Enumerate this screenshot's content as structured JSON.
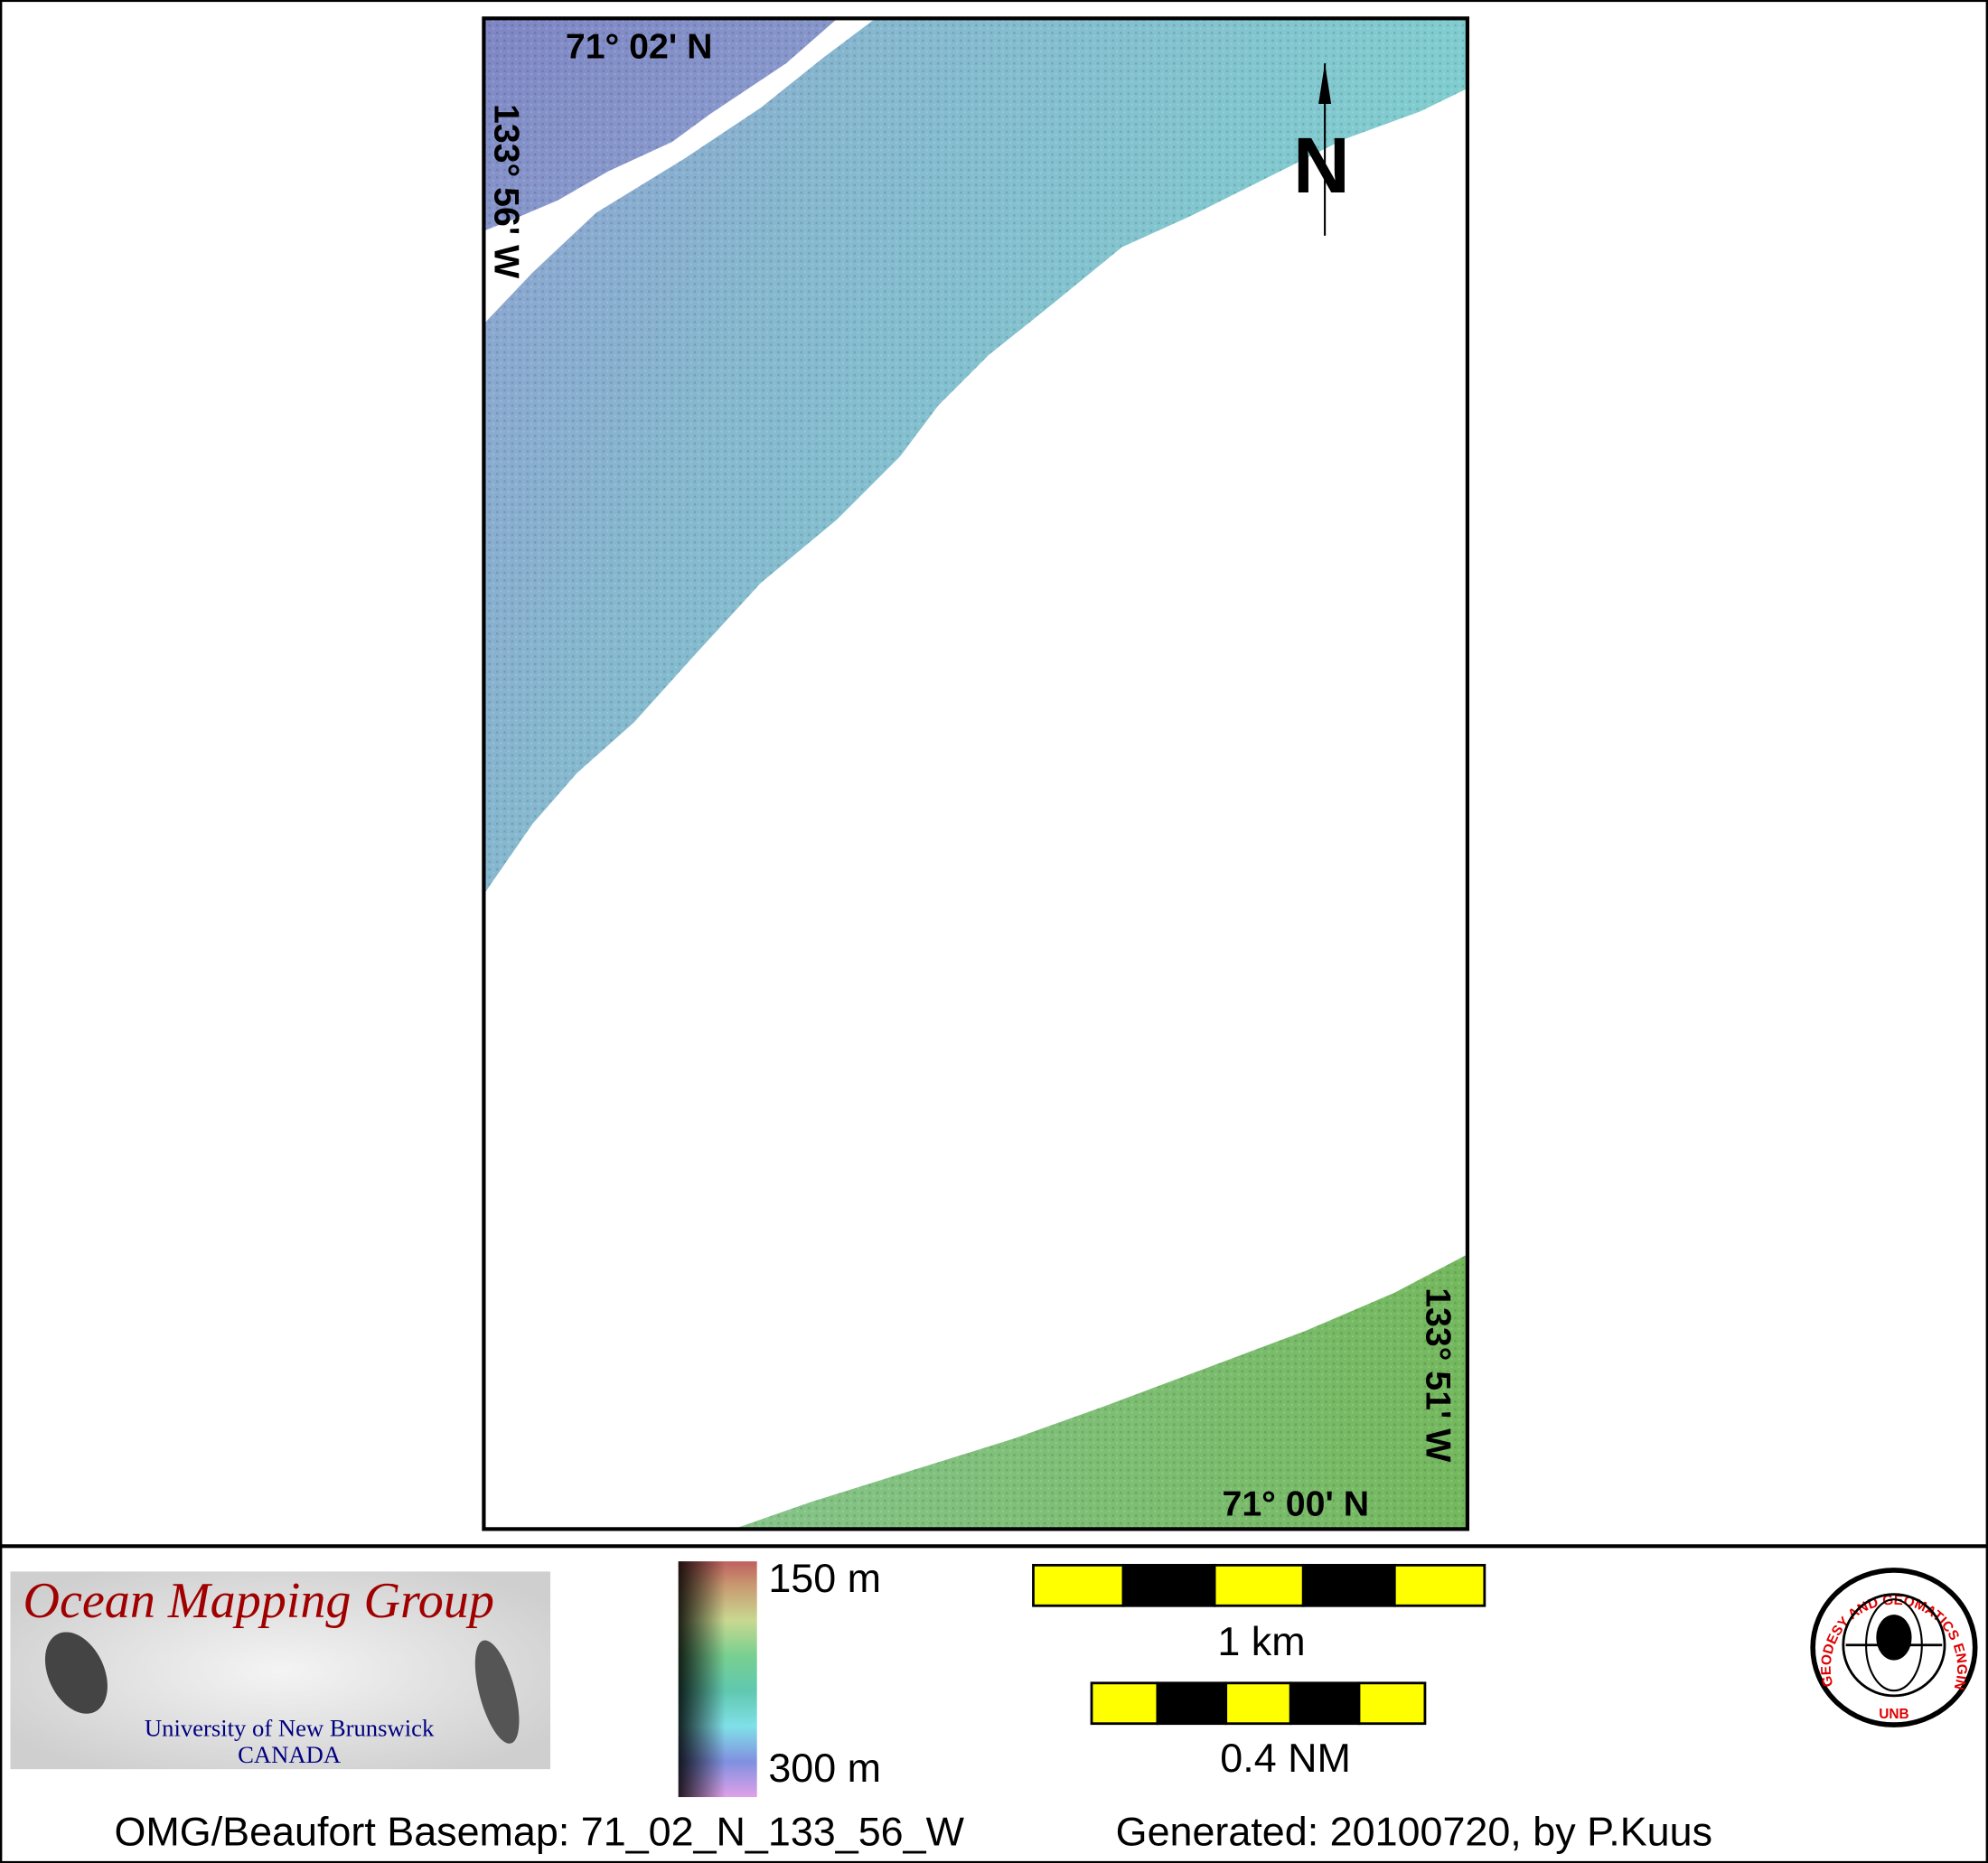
{
  "map": {
    "lat_top": "71° 02' N",
    "lat_bottom": "71° 00' N",
    "lon_left": "133° 56' W",
    "lon_right": "133° 51' W",
    "north_arrow": "N"
  },
  "legend": {
    "depth_min": "150 m",
    "depth_max": "300 m",
    "scale_km": "1 km",
    "scale_nm": "0.4 NM",
    "bar_colors": [
      "#ffff00",
      "#000000"
    ]
  },
  "logo_omg": {
    "title": "Ocean Mapping Group",
    "line1": "University of New Brunswick",
    "line2": "CANADA",
    "title_color": "#a00000",
    "subtitle_color": "#000080"
  },
  "logo_unb": {
    "ring_text": "GEODESY AND GEOMATICS ENGINEERING",
    "bottom": "UNB"
  },
  "footer": {
    "basemap": "OMG/Beaufort Basemap: 71_02_N_133_56_W",
    "generated": "Generated: 20100720, by P.Kuus"
  }
}
